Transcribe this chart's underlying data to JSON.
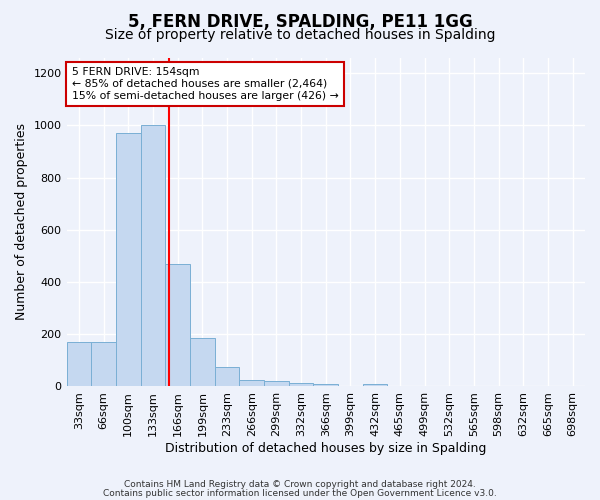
{
  "title": "5, FERN DRIVE, SPALDING, PE11 1GG",
  "subtitle": "Size of property relative to detached houses in Spalding",
  "xlabel": "Distribution of detached houses by size in Spalding",
  "ylabel": "Number of detached properties",
  "bin_labels": [
    "33sqm",
    "66sqm",
    "100sqm",
    "133sqm",
    "166sqm",
    "199sqm",
    "233sqm",
    "266sqm",
    "299sqm",
    "332sqm",
    "366sqm",
    "399sqm",
    "432sqm",
    "465sqm",
    "499sqm",
    "532sqm",
    "565sqm",
    "598sqm",
    "632sqm",
    "665sqm",
    "698sqm"
  ],
  "bin_edges": [
    16.5,
    49.5,
    82.5,
    115.5,
    148.5,
    181.5,
    214.5,
    247.5,
    280.5,
    313.5,
    346.5,
    379.5,
    412.5,
    445.5,
    478.5,
    511.5,
    544.5,
    577.5,
    610.5,
    643.5,
    676.5,
    709.5
  ],
  "values": [
    170,
    170,
    970,
    1000,
    470,
    185,
    75,
    25,
    20,
    15,
    10,
    0,
    10,
    0,
    0,
    0,
    0,
    0,
    0,
    0,
    0
  ],
  "bar_color": "#c5d8f0",
  "bar_edge_color": "#7aafd4",
  "red_line_x": 154,
  "ylim": [
    0,
    1260
  ],
  "yticks": [
    0,
    200,
    400,
    600,
    800,
    1000,
    1200
  ],
  "annotation_line1": "5 FERN DRIVE: 154sqm",
  "annotation_line2": "← 85% of detached houses are smaller (2,464)",
  "annotation_line3": "15% of semi-detached houses are larger (426) →",
  "footnote1": "Contains HM Land Registry data © Crown copyright and database right 2024.",
  "footnote2": "Contains public sector information licensed under the Open Government Licence v3.0.",
  "bg_color": "#eef2fb",
  "plot_bg_color": "#eef2fb",
  "title_fontsize": 12,
  "subtitle_fontsize": 10,
  "label_fontsize": 9,
  "tick_fontsize": 8,
  "footnote_fontsize": 6.5
}
